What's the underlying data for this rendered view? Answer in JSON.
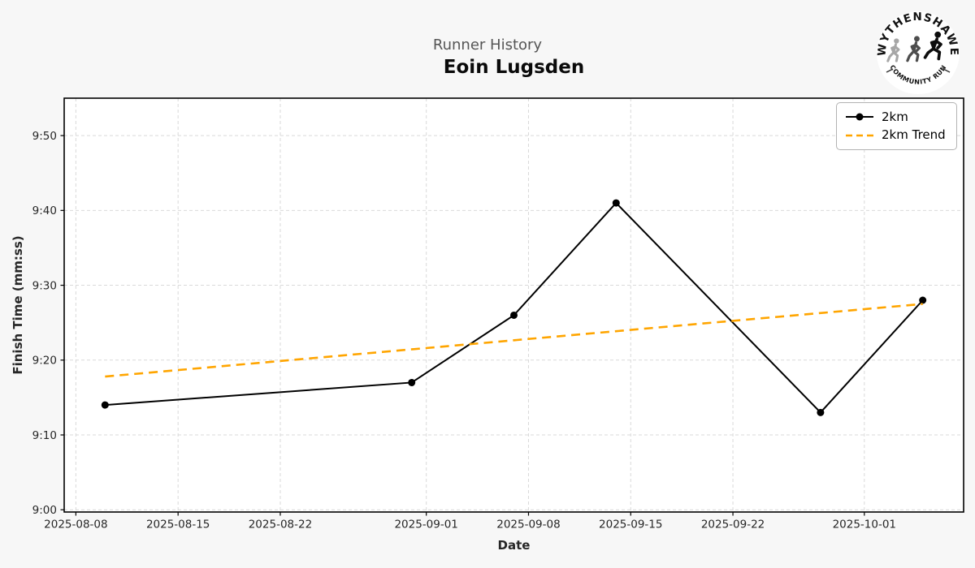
{
  "header": {
    "suptitle": "Runner History",
    "title": "Eoin Lugsden"
  },
  "logo": {
    "top_text": "WYTHENSHAWE",
    "bottom_text": "COMMUNITY RUN"
  },
  "chart_data": {
    "type": "line",
    "title": "Eoin Lugsden",
    "suptitle": "Runner History",
    "xlabel": "Date",
    "ylabel": "Finish Time (mm:ss)",
    "grid": true,
    "legend_position": "top-right",
    "series": [
      {
        "name": "2km",
        "color": "#000000",
        "style": "solid",
        "marker": "circle",
        "points": [
          {
            "date": "2025-08-10",
            "time": "9:14"
          },
          {
            "date": "2025-08-31",
            "time": "9:17"
          },
          {
            "date": "2025-09-07",
            "time": "9:26"
          },
          {
            "date": "2025-09-14",
            "time": "9:41"
          },
          {
            "date": "2025-09-28",
            "time": "9:13"
          },
          {
            "date": "2025-10-05",
            "time": "9:28"
          }
        ]
      },
      {
        "name": "2km Trend",
        "color": "#FFA500",
        "style": "dashed",
        "marker": "none",
        "points": [
          {
            "date": "2025-08-10",
            "time": "9:17.8"
          },
          {
            "date": "2025-10-05",
            "time": "9:27.5"
          }
        ]
      }
    ],
    "xticks": [
      "2025-08-08",
      "2025-08-15",
      "2025-08-22",
      "2025-09-01",
      "2025-09-08",
      "2025-09-15",
      "2025-09-22",
      "2025-10-01"
    ],
    "yticks": [
      "9:00",
      "9:10",
      "9:20",
      "9:30",
      "9:40",
      "9:50"
    ],
    "ylim_mmss": [
      "8:59.7",
      "9:55.0"
    ],
    "x_margin_days": 2.8,
    "colors": {
      "plot_bg": "#ffffff",
      "figure_bg": "#f7f7f7",
      "grid": "#d9d9d9",
      "spine": "#000000",
      "tick_text": "#262626"
    }
  }
}
